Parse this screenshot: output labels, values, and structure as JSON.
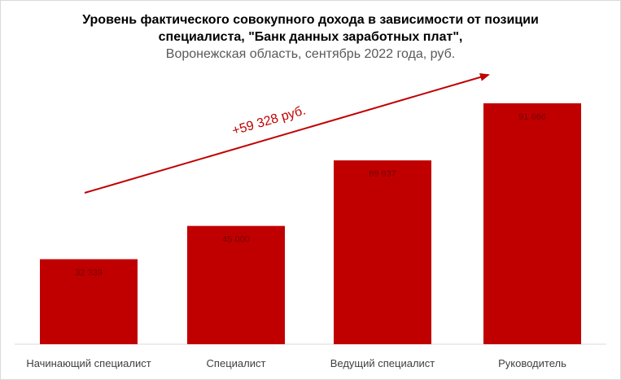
{
  "chart_data": {
    "type": "bar",
    "title_line1": "Уровень фактического совокупного дохода в зависимости от позиции",
    "title_line2": "специалиста, \"Банк данных заработных плат\",",
    "subtitle": "Воронежская область, сентябрь 2022 года, руб.",
    "categories": [
      "Начинающий специалист",
      "Специалист",
      "Ведущий специалист",
      "Руководитель"
    ],
    "values": [
      32339,
      45000,
      69937,
      91666
    ],
    "value_labels": [
      "32 339",
      "45 000",
      "69 937",
      "91 666"
    ],
    "ylim": [
      0,
      100000
    ],
    "bar_color": "#c00000",
    "annotation": {
      "text": "+59 328 руб.",
      "color": "#c00000"
    }
  }
}
